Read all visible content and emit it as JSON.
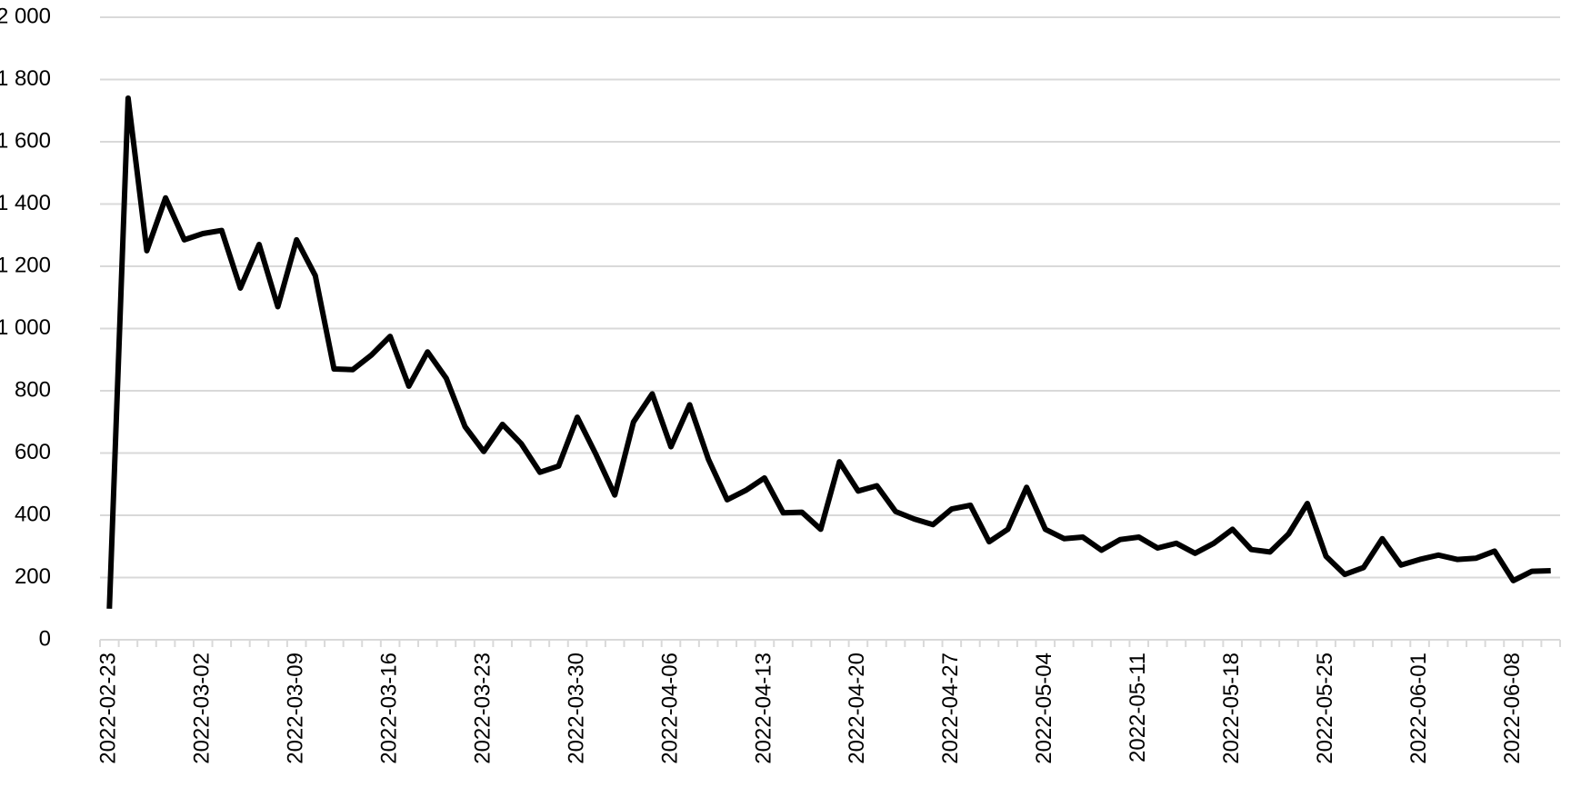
{
  "chart_data": {
    "type": "line",
    "categories": [
      "2022-02-23",
      null,
      null,
      null,
      null,
      "2022-03-02",
      null,
      null,
      null,
      null,
      "2022-03-09",
      null,
      null,
      null,
      null,
      "2022-03-16",
      null,
      null,
      null,
      null,
      "2022-03-23",
      null,
      null,
      null,
      null,
      "2022-03-30",
      null,
      null,
      null,
      null,
      "2022-04-06",
      null,
      null,
      null,
      null,
      "2022-04-13",
      null,
      null,
      null,
      null,
      "2022-04-20",
      null,
      null,
      null,
      null,
      "2022-04-27",
      null,
      null,
      null,
      null,
      "2022-05-04",
      null,
      null,
      null,
      null,
      "2022-05-11",
      null,
      null,
      null,
      null,
      "2022-05-18",
      null,
      null,
      null,
      null,
      "2022-05-25",
      null,
      null,
      null,
      null,
      "2022-06-01",
      null,
      null,
      null,
      null,
      "2022-06-08",
      null,
      null
    ],
    "values": [
      100,
      1740,
      1250,
      1420,
      1285,
      1305,
      1315,
      1130,
      1270,
      1070,
      1285,
      1170,
      870,
      868,
      915,
      975,
      815,
      925,
      840,
      685,
      605,
      692,
      630,
      538,
      558,
      715,
      595,
      465,
      700,
      790,
      620,
      755,
      580,
      450,
      480,
      520,
      408,
      410,
      355,
      572,
      478,
      495,
      412,
      388,
      370,
      420,
      432,
      315,
      355,
      490,
      355,
      325,
      330,
      288,
      322,
      330,
      295,
      310,
      278,
      310,
      355,
      290,
      282,
      340,
      438,
      268,
      210,
      232,
      325,
      240,
      258,
      272,
      258,
      262,
      285,
      190,
      220,
      222
    ],
    "color": "#000000",
    "ylim": [
      0,
      2000
    ],
    "yticks": [
      0,
      200,
      400,
      600,
      800,
      {
        "value": 1000,
        "label": "1 000"
      },
      {
        "value": 1200,
        "label": "1 200"
      },
      {
        "value": 1400,
        "label": "1 400"
      },
      {
        "value": 1600,
        "label": "1 600"
      },
      {
        "value": 1800,
        "label": "1 800"
      },
      {
        "value": 2000,
        "label": "2 000"
      }
    ],
    "grid": true
  }
}
